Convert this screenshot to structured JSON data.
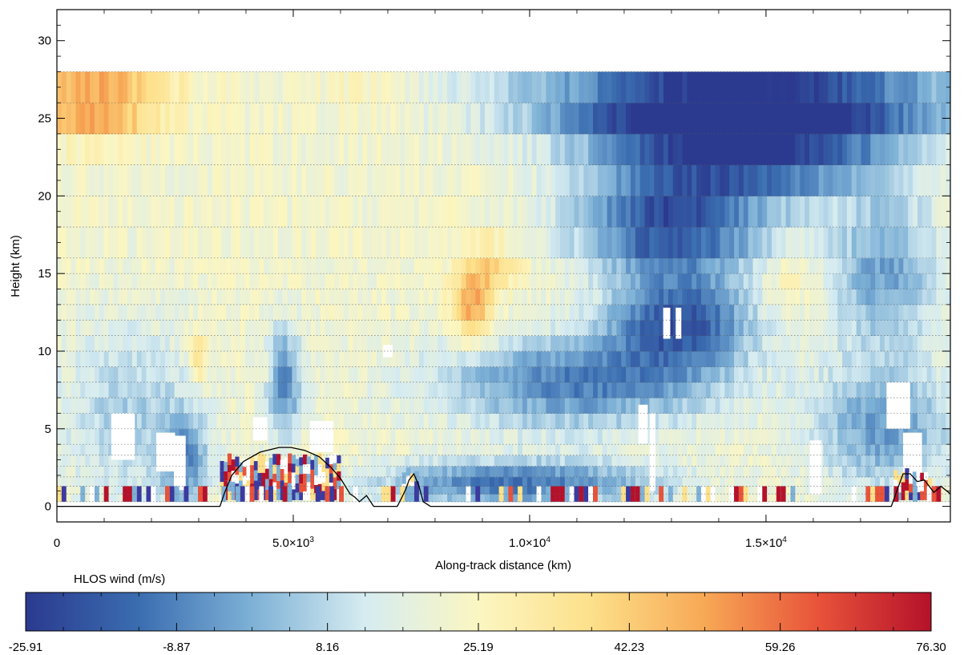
{
  "chart_data": {
    "type": "heatmap",
    "title": "",
    "xlabel": "Along-track distance (km)",
    "ylabel": "Height (km)",
    "xlim": [
      0,
      18900
    ],
    "ylim": [
      -1,
      32
    ],
    "x_ticks": [
      {
        "value": 0,
        "label": "0"
      },
      {
        "value": 5000,
        "label": "5.0×10",
        "exp": "3"
      },
      {
        "value": 10000,
        "label": "1.0×10",
        "exp": "4"
      },
      {
        "value": 15000,
        "label": "1.5×10",
        "exp": "4"
      }
    ],
    "y_ticks": [
      {
        "value": 0,
        "label": "0"
      },
      {
        "value": 5,
        "label": "5"
      },
      {
        "value": 10,
        "label": "10"
      },
      {
        "value": 15,
        "label": "15"
      },
      {
        "value": 20,
        "label": "20"
      },
      {
        "value": 25,
        "label": "25"
      },
      {
        "value": 30,
        "label": "30"
      }
    ],
    "colorbar": {
      "label": "HLOS wind (m/s)",
      "min": -25.91,
      "max": 76.3,
      "tick_labels": [
        "-25.91",
        "-8.87",
        "8.16",
        "25.19",
        "42.23",
        "59.26",
        "76.30"
      ],
      "colors": [
        "#2b3a8f",
        "#3a6db0",
        "#7eb1d6",
        "#d6ecf1",
        "#fbf6c2",
        "#fde08a",
        "#f7a855",
        "#e8533a",
        "#b5112a"
      ]
    },
    "range_bins_km": [
      0.3,
      0.8,
      1.3,
      1.9,
      2.6,
      3.3,
      4.0,
      5.0,
      6.0,
      7.0,
      8.0,
      9.0,
      10.0,
      11.0,
      12.0,
      13.0,
      14.0,
      15.0,
      16.0,
      18.0,
      20.0,
      22.0,
      24.0,
      26.0,
      28.0
    ],
    "wind_field_features": [
      {
        "x": 900,
        "y": 26.5,
        "wx": 1500,
        "wy": 1.8,
        "value": 50
      },
      {
        "x": 700,
        "y": 24.8,
        "wx": 1200,
        "wy": 1.5,
        "value": 38
      },
      {
        "x": 6500,
        "y": 26.5,
        "wx": 900,
        "wy": 1.5,
        "value": 28
      },
      {
        "x": 14500,
        "y": 26.5,
        "wx": 4500,
        "wy": 2.0,
        "value": -24
      },
      {
        "x": 14500,
        "y": 24.5,
        "wx": 3500,
        "wy": 2.0,
        "value": -18
      },
      {
        "x": 14500,
        "y": 22.0,
        "wx": 3000,
        "wy": 2.5,
        "value": -12
      },
      {
        "x": 13000,
        "y": 18.0,
        "wx": 2000,
        "wy": 3.0,
        "value": -20
      },
      {
        "x": 13200,
        "y": 12.0,
        "wx": 1500,
        "wy": 3.0,
        "value": -18
      },
      {
        "x": 11000,
        "y": 8.0,
        "wx": 3000,
        "wy": 3.0,
        "value": -10
      },
      {
        "x": 9800,
        "y": 1.5,
        "wx": 3000,
        "wy": 1.5,
        "value": -12
      },
      {
        "x": 8800,
        "y": 13.0,
        "wx": 400,
        "wy": 2.5,
        "value": 52
      },
      {
        "x": 9300,
        "y": 15.5,
        "wx": 500,
        "wy": 1.5,
        "value": 40
      },
      {
        "x": 3000,
        "y": 9.5,
        "wx": 200,
        "wy": 1.5,
        "value": 40
      },
      {
        "x": 4500,
        "y": 9.0,
        "wx": 150,
        "wy": 1.0,
        "value": 35
      },
      {
        "x": 15500,
        "y": 14.5,
        "wx": 600,
        "wy": 2.0,
        "value": 32
      },
      {
        "x": 4800,
        "y": 8.0,
        "wx": 400,
        "wy": 3.5,
        "value": -8
      },
      {
        "x": 2700,
        "y": 3.0,
        "wx": 500,
        "wy": 3.0,
        "value": -4
      },
      {
        "x": 17500,
        "y": 15.0,
        "wx": 1200,
        "wy": 5.0,
        "value": -3
      },
      {
        "x": 17500,
        "y": 5.0,
        "wx": 1500,
        "wy": 4.0,
        "value": -4
      },
      {
        "x": 1500,
        "y": 6.0,
        "wx": 1500,
        "wy": 6.0,
        "value": 6
      }
    ],
    "missing_data_patches": [
      {
        "x": 1400,
        "y": 4.5,
        "w": 500,
        "h": 3.0
      },
      {
        "x": 2300,
        "y": 3.5,
        "w": 400,
        "h": 2.5
      },
      {
        "x": 4300,
        "y": 5.0,
        "w": 300,
        "h": 1.5
      },
      {
        "x": 5600,
        "y": 4.5,
        "w": 500,
        "h": 2.0
      },
      {
        "x": 12400,
        "y": 5.3,
        "w": 200,
        "h": 2.5
      },
      {
        "x": 12900,
        "y": 11.8,
        "w": 150,
        "h": 2.0
      },
      {
        "x": 13150,
        "y": 11.8,
        "w": 120,
        "h": 2.0
      },
      {
        "x": 12600,
        "y": 3.5,
        "w": 120,
        "h": 5.0
      },
      {
        "x": 16050,
        "y": 2.5,
        "w": 250,
        "h": 3.5
      },
      {
        "x": 17800,
        "y": 6.5,
        "w": 500,
        "h": 3.0
      },
      {
        "x": 18100,
        "y": 3.0,
        "w": 400,
        "h": 3.5
      },
      {
        "x": 2600,
        "y": 2.8,
        "w": 250,
        "h": 3.5
      },
      {
        "x": 7000,
        "y": 10.0,
        "w": 200,
        "h": 0.8
      }
    ],
    "ground_return_segments": [
      {
        "x0": 3450,
        "x1": 6000,
        "y0": 0.4,
        "y1": 2.8
      },
      {
        "x0": 7300,
        "x1": 7650,
        "y0": 0.4,
        "y1": 2.0
      },
      {
        "x0": 17700,
        "x1": 18500,
        "y0": 0.4,
        "y1": 1.8
      }
    ],
    "ground_return_colors": [
      "#b5112a",
      "#e8533a",
      "#ffffff",
      "#3a3a9f",
      "#fde08a",
      "#7eb1d6"
    ],
    "surface_elevation": {
      "x": [
        0,
        3450,
        3550,
        3700,
        3950,
        4300,
        4700,
        4950,
        5250,
        5550,
        5800,
        6000,
        6200,
        6300,
        6400,
        6550,
        6700,
        7200,
        7300,
        7380,
        7450,
        7550,
        7650,
        7750,
        7900,
        17650,
        17780,
        17900,
        18050,
        18200,
        18350,
        18550,
        18700,
        18900
      ],
      "y": [
        0,
        0,
        0.9,
        2.0,
        2.9,
        3.5,
        3.8,
        3.8,
        3.6,
        3.2,
        2.5,
        1.8,
        0.8,
        0.6,
        0.3,
        0.7,
        0,
        0,
        0.6,
        1.1,
        1.7,
        2.1,
        1.4,
        0.3,
        0,
        0,
        1.1,
        2.1,
        2.1,
        1.6,
        1.7,
        0.9,
        1.3,
        0.8
      ]
    }
  }
}
